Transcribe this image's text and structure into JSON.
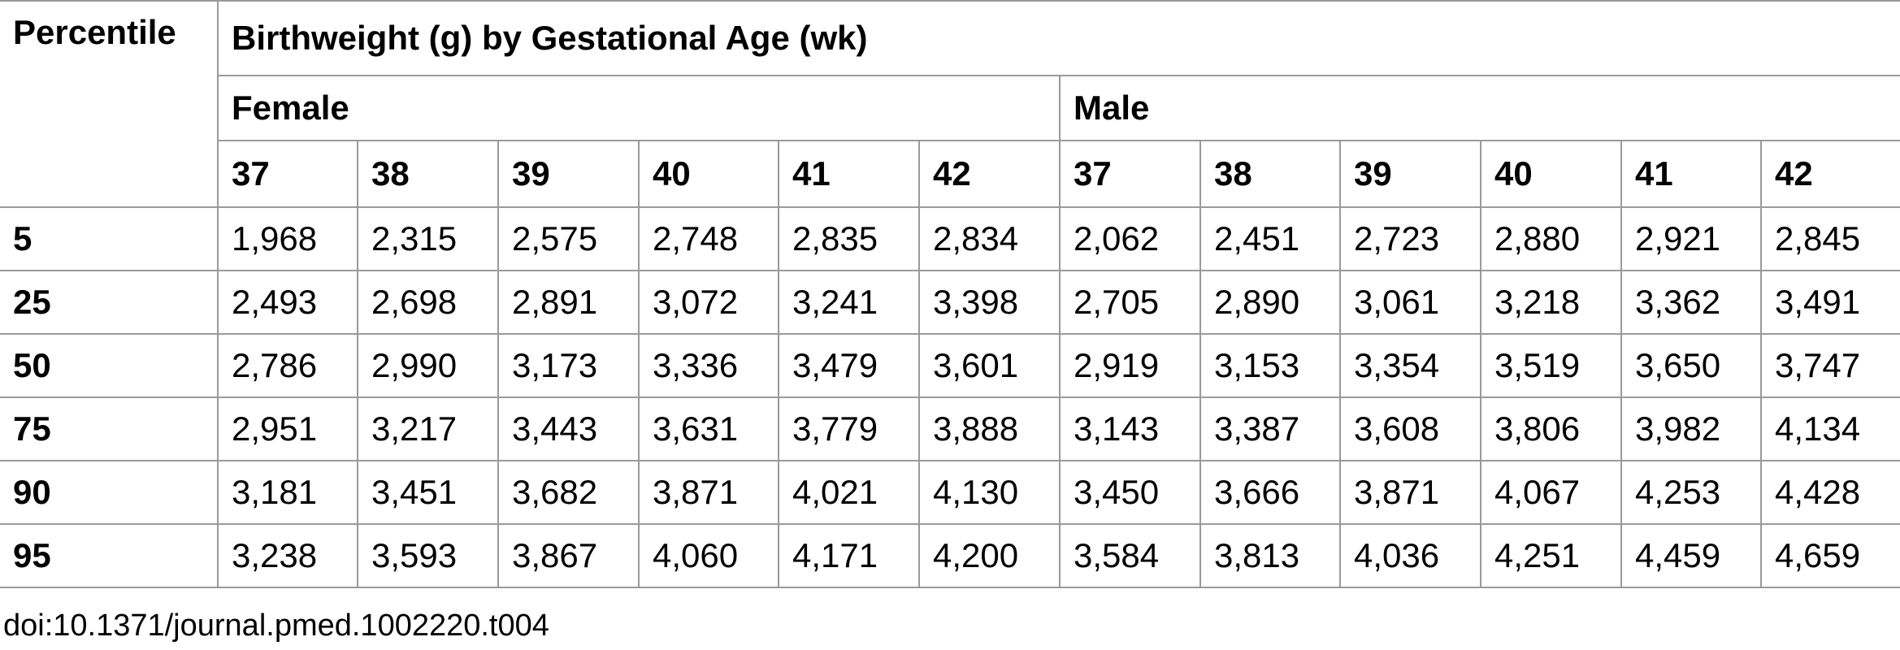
{
  "table": {
    "percentile_header": "Percentile",
    "group_header": "Birthweight (g) by Gestational Age (wk)",
    "sexes": [
      "Female",
      "Male"
    ],
    "weeks": [
      "37",
      "38",
      "39",
      "40",
      "41",
      "42",
      "37",
      "38",
      "39",
      "40",
      "41",
      "42"
    ],
    "rows": [
      {
        "percentile": "5",
        "values": [
          "1,968",
          "2,315",
          "2,575",
          "2,748",
          "2,835",
          "2,834",
          "2,062",
          "2,451",
          "2,723",
          "2,880",
          "2,921",
          "2,845"
        ]
      },
      {
        "percentile": "25",
        "values": [
          "2,493",
          "2,698",
          "2,891",
          "3,072",
          "3,241",
          "3,398",
          "2,705",
          "2,890",
          "3,061",
          "3,218",
          "3,362",
          "3,491"
        ]
      },
      {
        "percentile": "50",
        "values": [
          "2,786",
          "2,990",
          "3,173",
          "3,336",
          "3,479",
          "3,601",
          "2,919",
          "3,153",
          "3,354",
          "3,519",
          "3,650",
          "3,747"
        ]
      },
      {
        "percentile": "75",
        "values": [
          "2,951",
          "3,217",
          "3,443",
          "3,631",
          "3,779",
          "3,888",
          "3,143",
          "3,387",
          "3,608",
          "3,806",
          "3,982",
          "4,134"
        ]
      },
      {
        "percentile": "90",
        "values": [
          "3,181",
          "3,451",
          "3,682",
          "3,871",
          "4,021",
          "4,130",
          "3,450",
          "3,666",
          "3,871",
          "4,067",
          "4,253",
          "4,428"
        ]
      },
      {
        "percentile": "95",
        "values": [
          "3,238",
          "3,593",
          "3,867",
          "4,060",
          "4,171",
          "4,200",
          "3,584",
          "3,813",
          "4,036",
          "4,251",
          "4,459",
          "4,659"
        ]
      }
    ]
  },
  "doi": "doi:10.1371/journal.pmed.1002220.t004"
}
